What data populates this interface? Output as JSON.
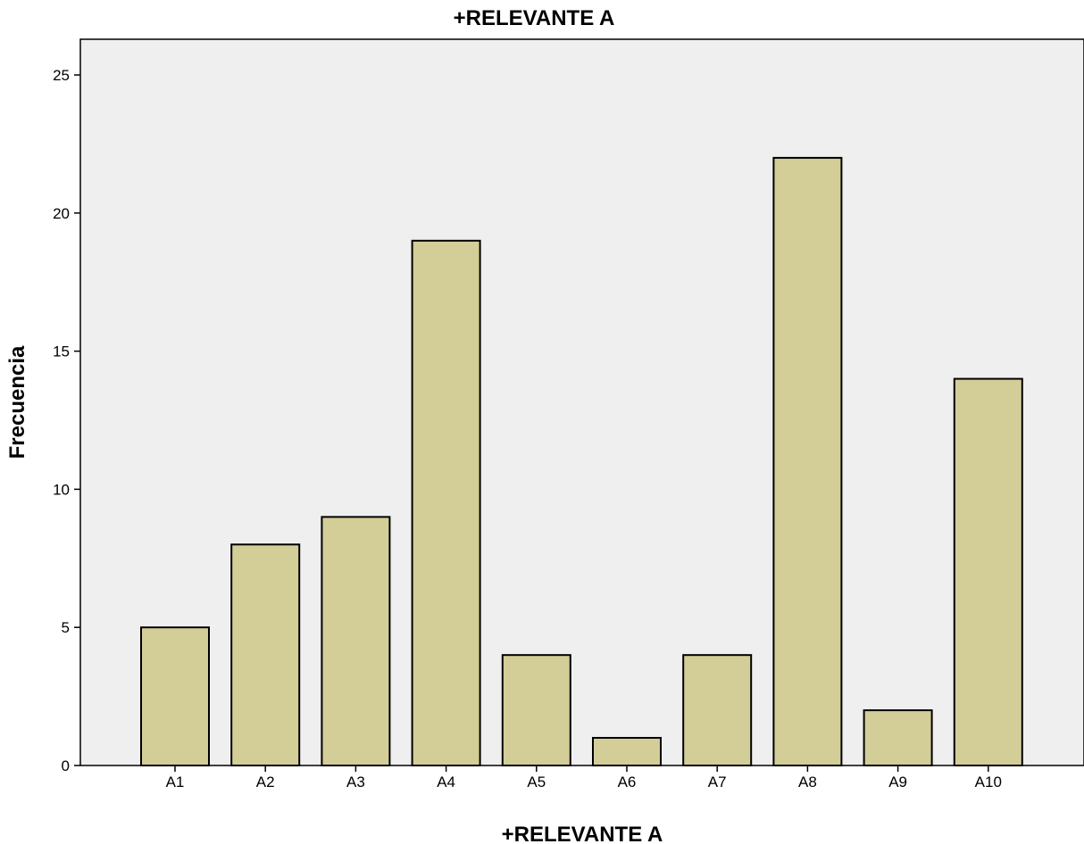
{
  "chart_data": {
    "type": "bar",
    "title": "+RELEVANTE A",
    "xlabel": "+RELEVANTE A",
    "ylabel": "Frecuencia",
    "categories": [
      "A1",
      "A2",
      "A3",
      "A4",
      "A5",
      "A6",
      "A7",
      "A8",
      "A9",
      "A10"
    ],
    "values": [
      5,
      8,
      9,
      19,
      4,
      1,
      4,
      22,
      2,
      14
    ],
    "ylim": [
      0,
      26
    ],
    "yticks": [
      0,
      5,
      10,
      15,
      20,
      25
    ],
    "grid": false,
    "legend": "none",
    "bar_color": "#d3cd98",
    "plot_background": "#efefef"
  }
}
